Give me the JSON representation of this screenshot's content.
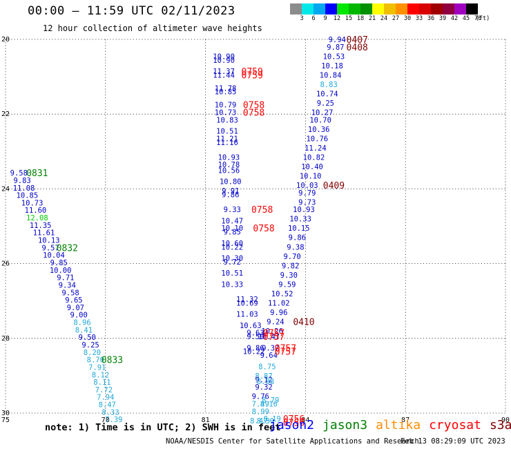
{
  "header": {
    "title": "00:00 – 11:59 UTC 02/11/2023",
    "subtitle": "12 hour collection of altimeter wave heights"
  },
  "colorbar": {
    "labels": [
      "3",
      "6",
      "9",
      "12",
      "15",
      "18",
      "21",
      "24",
      "27",
      "30",
      "33",
      "36",
      "39",
      "42",
      "45",
      "70",
      "(ft)"
    ],
    "colors": [
      "#8c8c8c",
      "#00e8e8",
      "#00a8f0",
      "#0000ff",
      "#00e800",
      "#00b800",
      "#009000",
      "#ffff00",
      "#f0c000",
      "#ff9000",
      "#ff0000",
      "#d80000",
      "#a00000",
      "#900040",
      "#a000c0",
      "#000000"
    ]
  },
  "map": {
    "lat_labels": [
      "20",
      "22",
      "24",
      "26",
      "28",
      "30"
    ],
    "lon_labels": [
      "75",
      "78",
      "81",
      "84",
      "87",
      "90"
    ]
  },
  "wave_colors": {
    "6-9 ft": "#20a8d8",
    "9-12 ft": "#0000c8",
    "12-15 ft": "#00cc00"
  },
  "satellite_colors": {
    "jason2": "#0000ff",
    "jason3": "#008000",
    "altika": "#ff8c00",
    "cryosat": "#ff0000",
    "s3a": "#800000"
  },
  "observations": [
    {
      "v": "9.58",
      "lat": 23.57,
      "lon": 75.4,
      "c": "9-12 ft"
    },
    {
      "v": "9.83",
      "lat": 23.77,
      "lon": 75.5,
      "c": "9-12 ft"
    },
    {
      "v": "11.08",
      "lat": 23.97,
      "lon": 75.55,
      "c": "9-12 ft"
    },
    {
      "v": "10.85",
      "lat": 24.17,
      "lon": 75.65,
      "c": "9-12 ft"
    },
    {
      "v": "10.73",
      "lat": 24.37,
      "lon": 75.8,
      "c": "9-12 ft"
    },
    {
      "v": "11.60",
      "lat": 24.57,
      "lon": 75.9,
      "c": "9-12 ft"
    },
    {
      "v": "12.08",
      "lat": 24.77,
      "lon": 75.95,
      "c": "12-15 ft"
    },
    {
      "v": "11.35",
      "lat": 24.97,
      "lon": 76.05,
      "c": "9-12 ft"
    },
    {
      "v": "11.61",
      "lat": 25.17,
      "lon": 76.15,
      "c": "9-12 ft"
    },
    {
      "v": "10.13",
      "lat": 25.37,
      "lon": 76.3,
      "c": "9-12 ft"
    },
    {
      "v": "9.57",
      "lat": 25.57,
      "lon": 76.35,
      "c": "9-12 ft"
    },
    {
      "v": "10.04",
      "lat": 25.77,
      "lon": 76.45,
      "c": "9-12 ft"
    },
    {
      "v": "9.85",
      "lat": 25.97,
      "lon": 76.6,
      "c": "9-12 ft"
    },
    {
      "v": "10.00",
      "lat": 26.17,
      "lon": 76.65,
      "c": "9-12 ft"
    },
    {
      "v": "9.71",
      "lat": 26.37,
      "lon": 76.8,
      "c": "9-12 ft"
    },
    {
      "v": "9.34",
      "lat": 26.57,
      "lon": 76.85,
      "c": "9-12 ft"
    },
    {
      "v": "9.58",
      "lat": 26.77,
      "lon": 76.95,
      "c": "9-12 ft"
    },
    {
      "v": "9.65",
      "lat": 26.97,
      "lon": 77.05,
      "c": "9-12 ft"
    },
    {
      "v": "9.07",
      "lat": 27.17,
      "lon": 77.1,
      "c": "9-12 ft"
    },
    {
      "v": "9.00",
      "lat": 27.37,
      "lon": 77.2,
      "c": "9-12 ft"
    },
    {
      "v": "8.96",
      "lat": 27.57,
      "lon": 77.3,
      "c": "6-9 ft"
    },
    {
      "v": "8.41",
      "lat": 27.77,
      "lon": 77.35,
      "c": "6-9 ft"
    },
    {
      "v": "9.50",
      "lat": 27.97,
      "lon": 77.45,
      "c": "9-12 ft"
    },
    {
      "v": "9.25",
      "lat": 28.17,
      "lon": 77.55,
      "c": "9-12 ft"
    },
    {
      "v": "8.20",
      "lat": 28.37,
      "lon": 77.6,
      "c": "6-9 ft"
    },
    {
      "v": "8.70",
      "lat": 28.57,
      "lon": 77.7,
      "c": "6-9 ft"
    },
    {
      "v": "7.91",
      "lat": 28.77,
      "lon": 77.75,
      "c": "6-9 ft"
    },
    {
      "v": "8.12",
      "lat": 28.97,
      "lon": 77.85,
      "c": "6-9 ft"
    },
    {
      "v": "8.11",
      "lat": 29.17,
      "lon": 77.9,
      "c": "6-9 ft"
    },
    {
      "v": "7.72",
      "lat": 29.37,
      "lon": 77.95,
      "c": "6-9 ft"
    },
    {
      "v": "7.94",
      "lat": 29.57,
      "lon": 78.0,
      "c": "6-9 ft"
    },
    {
      "v": "8.47",
      "lat": 29.77,
      "lon": 78.05,
      "c": "6-9 ft"
    },
    {
      "v": "8.33",
      "lat": 29.97,
      "lon": 78.15,
      "c": "6-9 ft"
    },
    {
      "v": "7.39",
      "lat": 30.17,
      "lon": 78.25,
      "c": "6-9 ft"
    },
    {
      "v": "9.94",
      "lat": 20.0,
      "lon": 84.95,
      "c": "9-12 ft"
    },
    {
      "v": "9.87",
      "lat": 20.2,
      "lon": 84.9,
      "c": "9-12 ft"
    },
    {
      "v": "10.53",
      "lat": 20.45,
      "lon": 84.85,
      "c": "9-12 ft"
    },
    {
      "v": "10.18",
      "lat": 20.7,
      "lon": 84.8,
      "c": "9-12 ft"
    },
    {
      "v": "10.84",
      "lat": 20.95,
      "lon": 84.75,
      "c": "9-12 ft"
    },
    {
      "v": "8.83",
      "lat": 21.2,
      "lon": 84.7,
      "c": "6-9 ft"
    },
    {
      "v": "10.74",
      "lat": 21.45,
      "lon": 84.65,
      "c": "9-12 ft"
    },
    {
      "v": "9.25",
      "lat": 21.7,
      "lon": 84.6,
      "c": "9-12 ft"
    },
    {
      "v": "10.27",
      "lat": 21.95,
      "lon": 84.5,
      "c": "9-12 ft"
    },
    {
      "v": "10.70",
      "lat": 22.15,
      "lon": 84.45,
      "c": "9-12 ft"
    },
    {
      "v": "10.36",
      "lat": 22.4,
      "lon": 84.4,
      "c": "9-12 ft"
    },
    {
      "v": "10.76",
      "lat": 22.65,
      "lon": 84.35,
      "c": "9-12 ft"
    },
    {
      "v": "11.24",
      "lat": 22.9,
      "lon": 84.3,
      "c": "9-12 ft"
    },
    {
      "v": "10.82",
      "lat": 23.15,
      "lon": 84.25,
      "c": "9-12 ft"
    },
    {
      "v": "10.40",
      "lat": 23.4,
      "lon": 84.2,
      "c": "9-12 ft"
    },
    {
      "v": "10.10",
      "lat": 23.65,
      "lon": 84.15,
      "c": "9-12 ft"
    },
    {
      "v": "10.03",
      "lat": 23.9,
      "lon": 84.05,
      "c": "9-12 ft"
    },
    {
      "v": "9.79",
      "lat": 24.1,
      "lon": 84.05,
      "c": "9-12 ft"
    },
    {
      "v": "9.73",
      "lat": 24.35,
      "lon": 84.05,
      "c": "9-12 ft"
    },
    {
      "v": "10.93",
      "lat": 24.55,
      "lon": 83.95,
      "c": "9-12 ft"
    },
    {
      "v": "10.33",
      "lat": 24.8,
      "lon": 83.85,
      "c": "9-12 ft"
    },
    {
      "v": "10.15",
      "lat": 25.05,
      "lon": 83.8,
      "c": "9-12 ft"
    },
    {
      "v": "9.86",
      "lat": 25.3,
      "lon": 83.75,
      "c": "9-12 ft"
    },
    {
      "v": "9.38",
      "lat": 25.55,
      "lon": 83.7,
      "c": "9-12 ft"
    },
    {
      "v": "9.70",
      "lat": 25.8,
      "lon": 83.6,
      "c": "9-12 ft"
    },
    {
      "v": "9.82",
      "lat": 26.05,
      "lon": 83.55,
      "c": "9-12 ft"
    },
    {
      "v": "9.30",
      "lat": 26.3,
      "lon": 83.5,
      "c": "9-12 ft"
    },
    {
      "v": "9.59",
      "lat": 26.55,
      "lon": 83.45,
      "c": "9-12 ft"
    },
    {
      "v": "10.52",
      "lat": 26.8,
      "lon": 83.3,
      "c": "9-12 ft"
    },
    {
      "v": "11.02",
      "lat": 27.05,
      "lon": 83.2,
      "c": "9-12 ft"
    },
    {
      "v": "9.96",
      "lat": 27.3,
      "lon": 83.2,
      "c": "9-12 ft"
    },
    {
      "v": "9.24",
      "lat": 27.55,
      "lon": 83.1,
      "c": "9-12 ft"
    },
    {
      "v": "10.26",
      "lat": 27.8,
      "lon": 83.0,
      "c": "9-12 ft"
    },
    {
      "v": "10.90",
      "lat": 20.45,
      "lon": 81.55,
      "c": "9-12 ft"
    },
    {
      "v": "10.90",
      "lat": 20.55,
      "lon": 81.55,
      "c": "9-12 ft"
    },
    {
      "v": "11.37",
      "lat": 20.85,
      "lon": 81.55,
      "c": "9-12 ft"
    },
    {
      "v": "11.44",
      "lat": 20.95,
      "lon": 81.55,
      "c": "9-12 ft"
    },
    {
      "v": "11.78",
      "lat": 21.3,
      "lon": 81.6,
      "c": "9-12 ft"
    },
    {
      "v": "10.85",
      "lat": 21.4,
      "lon": 81.6,
      "c": "9-12 ft"
    },
    {
      "v": "10.79",
      "lat": 21.75,
      "lon": 81.6,
      "c": "9-12 ft"
    },
    {
      "v": "10.73",
      "lat": 21.95,
      "lon": 81.6,
      "c": "9-12 ft"
    },
    {
      "v": "10.83",
      "lat": 22.15,
      "lon": 81.65,
      "c": "9-12 ft"
    },
    {
      "v": "10.51",
      "lat": 22.45,
      "lon": 81.65,
      "c": "9-12 ft"
    },
    {
      "v": "11.21",
      "lat": 22.65,
      "lon": 81.65,
      "c": "9-12 ft"
    },
    {
      "v": "11.16",
      "lat": 22.75,
      "lon": 81.65,
      "c": "9-12 ft"
    },
    {
      "v": "10.93",
      "lat": 23.15,
      "lon": 81.7,
      "c": "9-12 ft"
    },
    {
      "v": "10.78",
      "lat": 23.35,
      "lon": 81.7,
      "c": "9-12 ft"
    },
    {
      "v": "10.56",
      "lat": 23.5,
      "lon": 81.7,
      "c": "9-12 ft"
    },
    {
      "v": "10.80",
      "lat": 23.8,
      "lon": 81.75,
      "c": "9-12 ft"
    },
    {
      "v": "9.91",
      "lat": 24.05,
      "lon": 81.75,
      "c": "9-12 ft"
    },
    {
      "v": "9.86",
      "lat": 24.15,
      "lon": 81.75,
      "c": "9-12 ft"
    },
    {
      "v": "9.33",
      "lat": 24.55,
      "lon": 81.8,
      "c": "9-12 ft"
    },
    {
      "v": "10.47",
      "lat": 24.85,
      "lon": 81.8,
      "c": "9-12 ft"
    },
    {
      "v": "10.10",
      "lat": 25.05,
      "lon": 81.8,
      "c": "9-12 ft"
    },
    {
      "v": "9.85",
      "lat": 25.15,
      "lon": 81.8,
      "c": "9-12 ft"
    },
    {
      "v": "10.60",
      "lat": 25.45,
      "lon": 81.8,
      "c": "9-12 ft"
    },
    {
      "v": "10.22",
      "lat": 25.55,
      "lon": 81.8,
      "c": "9-12 ft"
    },
    {
      "v": "10.30",
      "lat": 25.85,
      "lon": 81.8,
      "c": "9-12 ft"
    },
    {
      "v": "9.72",
      "lat": 25.95,
      "lon": 81.8,
      "c": "9-12 ft"
    },
    {
      "v": "10.51",
      "lat": 26.25,
      "lon": 81.8,
      "c": "9-12 ft"
    },
    {
      "v": "10.33",
      "lat": 26.55,
      "lon": 81.8,
      "c": "9-12 ft"
    },
    {
      "v": "11.32",
      "lat": 26.95,
      "lon": 82.25,
      "c": "9-12 ft"
    },
    {
      "v": "10.69",
      "lat": 27.05,
      "lon": 82.25,
      "c": "9-12 ft"
    },
    {
      "v": "11.03",
      "lat": 27.35,
      "lon": 82.25,
      "c": "9-12 ft"
    },
    {
      "v": "10.63",
      "lat": 27.65,
      "lon": 82.35,
      "c": "9-12 ft"
    },
    {
      "v": "9.63",
      "lat": 27.85,
      "lon": 82.5,
      "c": "9-12 ft"
    },
    {
      "v": "9.59",
      "lat": 27.95,
      "lon": 82.5,
      "c": "9-12 ft"
    },
    {
      "v": "10.47",
      "lat": 27.95,
      "lon": 82.9,
      "c": "9-12 ft"
    },
    {
      "v": "9.86",
      "lat": 28.25,
      "lon": 82.5,
      "c": "9-12 ft"
    },
    {
      "v": "9.37",
      "lat": 28.25,
      "lon": 82.95,
      "c": "9-12 ft"
    },
    {
      "v": "10.22",
      "lat": 28.35,
      "lon": 82.45,
      "c": "9-12 ft"
    },
    {
      "v": "9.64",
      "lat": 28.45,
      "lon": 82.9,
      "c": "9-12 ft"
    },
    {
      "v": "8.75",
      "lat": 28.75,
      "lon": 82.85,
      "c": "6-9 ft"
    },
    {
      "v": "8.87",
      "lat": 29.0,
      "lon": 82.75,
      "c": "6-9 ft"
    },
    {
      "v": "9.12",
      "lat": 29.1,
      "lon": 82.75,
      "c": "9-12 ft"
    },
    {
      "v": "8.88",
      "lat": 29.15,
      "lon": 82.8,
      "c": "6-9 ft"
    },
    {
      "v": "9.32",
      "lat": 29.3,
      "lon": 82.75,
      "c": "9-12 ft"
    },
    {
      "v": "9.76",
      "lat": 29.55,
      "lon": 82.65,
      "c": "9-12 ft"
    },
    {
      "v": "8.79",
      "lat": 29.65,
      "lon": 82.95,
      "c": "6-9 ft"
    },
    {
      "v": "7.49",
      "lat": 29.75,
      "lon": 82.65,
      "c": "6-9 ft"
    },
    {
      "v": "8.16",
      "lat": 29.75,
      "lon": 82.9,
      "c": "6-9 ft"
    },
    {
      "v": "8.99",
      "lat": 29.95,
      "lon": 82.65,
      "c": "6-9 ft"
    },
    {
      "v": "8.47",
      "lat": 30.2,
      "lon": 82.6,
      "c": "6-9 ft"
    },
    {
      "v": "8.39",
      "lat": 30.2,
      "lon": 82.8,
      "c": "6-9 ft"
    },
    {
      "v": "8.19",
      "lat": 30.15,
      "lon": 83.0,
      "c": "6-9 ft"
    }
  ],
  "pass_labels": [
    {
      "t": "0831",
      "lat": 23.57,
      "lon": 75.95,
      "sat": "jason3"
    },
    {
      "t": "0832",
      "lat": 25.57,
      "lon": 76.85,
      "sat": "jason3"
    },
    {
      "t": "0833",
      "lat": 28.57,
      "lon": 78.2,
      "sat": "jason3"
    },
    {
      "t": "0407",
      "lat": 20.0,
      "lon": 85.55,
      "sat": "s3a"
    },
    {
      "t": "0408",
      "lat": 20.2,
      "lon": 85.55,
      "sat": "s3a"
    },
    {
      "t": "0409",
      "lat": 23.9,
      "lon": 84.85,
      "sat": "s3a"
    },
    {
      "t": "0410",
      "lat": 27.55,
      "lon": 83.95,
      "sat": "s3a"
    },
    {
      "t": "0759",
      "lat": 20.85,
      "lon": 82.4,
      "sat": "cryosat"
    },
    {
      "t": "0759",
      "lat": 20.95,
      "lon": 82.4,
      "sat": "cryosat"
    },
    {
      "t": "0758",
      "lat": 21.75,
      "lon": 82.45,
      "sat": "cryosat"
    },
    {
      "t": "0758",
      "lat": 21.95,
      "lon": 82.45,
      "sat": "cryosat"
    },
    {
      "t": "0758",
      "lat": 24.55,
      "lon": 82.7,
      "sat": "cryosat"
    },
    {
      "t": "0758",
      "lat": 25.05,
      "lon": 82.75,
      "sat": "cryosat"
    },
    {
      "t": "0757",
      "lat": 27.85,
      "lon": 83.05,
      "sat": "cryosat"
    },
    {
      "t": "0757",
      "lat": 27.95,
      "lon": 83.05,
      "sat": "cryosat"
    },
    {
      "t": "0757",
      "lat": 28.25,
      "lon": 83.4,
      "sat": "cryosat"
    },
    {
      "t": "0757",
      "lat": 28.35,
      "lon": 83.4,
      "sat": "cryosat"
    },
    {
      "t": "0756",
      "lat": 30.15,
      "lon": 83.65,
      "sat": "cryosat"
    },
    {
      "t": "0756",
      "lat": 30.25,
      "lon": 83.65,
      "sat": "cryosat"
    }
  ],
  "footer": {
    "note": "note: 1) Time is in UTC; 2) SWH is in feet",
    "satellites": [
      {
        "name": "jason2",
        "color": "#0000ff"
      },
      {
        "name": "jason3",
        "color": "#008000"
      },
      {
        "name": "altika",
        "color": "#ff8c00"
      },
      {
        "name": "cryosat",
        "color": "#ff0000"
      },
      {
        "name": "s3a",
        "color": "#800000"
      }
    ],
    "credit": "NOAA/NESDIS Center for Satellite Applications and Research",
    "timestamp": "Feb 13 08:29:09 UTC 2023"
  }
}
